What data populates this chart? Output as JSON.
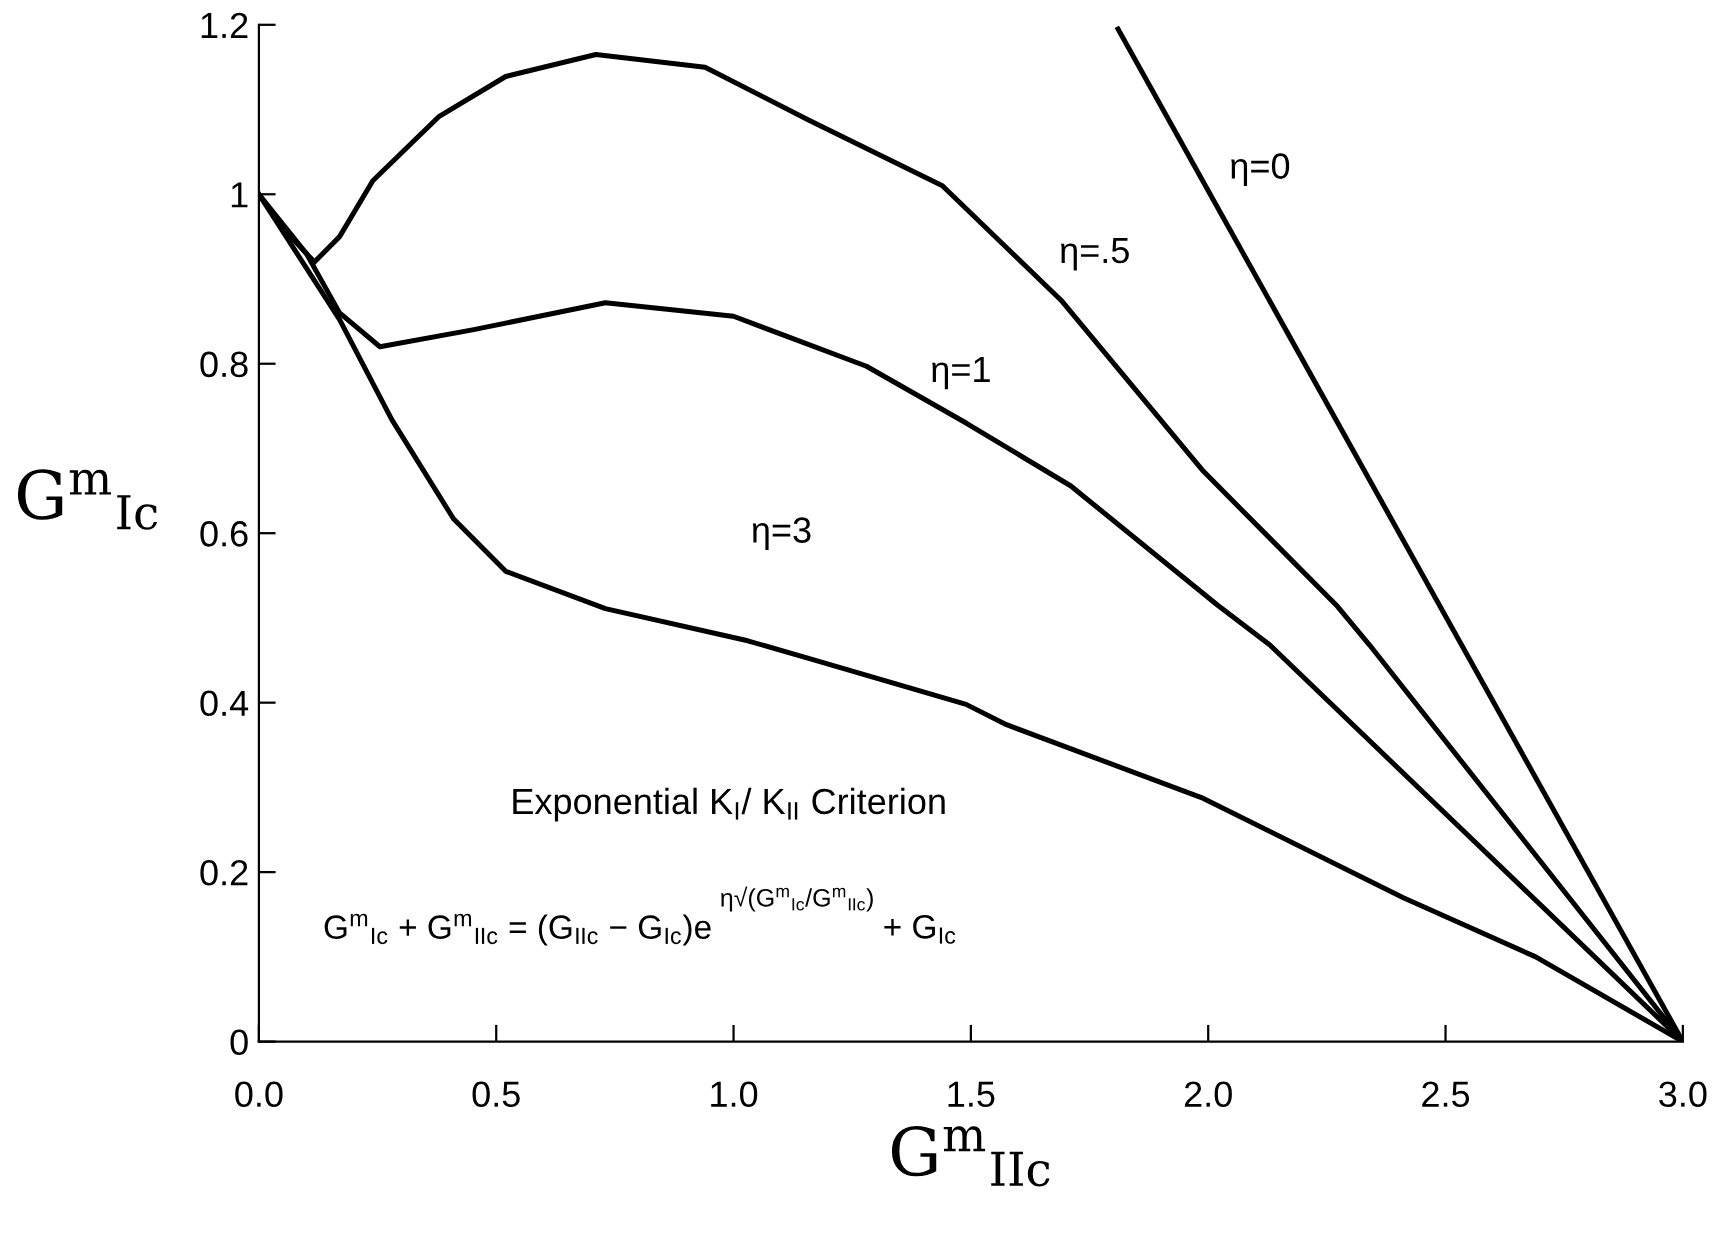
{
  "chart_data": {
    "type": "line",
    "xlabel": "G$^{m}$$_{IIc}$",
    "ylabel": "G$^{m}$$_{Ic}$",
    "series": [
      {
        "color": "#000000",
        "x": [
          1.81,
          3.0
        ],
        "values": [
          1.195,
          0
        ]
      },
      {
        "color": "#000000",
        "x": [
          0,
          0.05,
          0.117,
          0.17,
          0.24,
          0.38,
          0.52,
          0.71,
          0.94,
          1.16,
          1.44,
          1.69,
          1.99,
          2.27,
          2.34,
          3.0
        ],
        "values": [
          1,
          0.96,
          0.92,
          0.95,
          1.016,
          1.092,
          1.139,
          1.165,
          1.15,
          1.087,
          1.01,
          0.875,
          0.673,
          0.515,
          0.468,
          0
        ]
      },
      {
        "color": "#000000",
        "x": [
          0,
          0.1,
          0.17,
          0.255,
          0.45,
          0.73,
          1.0,
          1.28,
          1.49,
          1.71,
          2.02,
          2.13,
          3.0
        ],
        "values": [
          1,
          0.93,
          0.86,
          0.82,
          0.84,
          0.872,
          0.856,
          0.797,
          0.73,
          0.656,
          0.515,
          0.468,
          0
        ]
      },
      {
        "color": "#000000",
        "x": [
          0,
          0.17,
          0.28,
          0.41,
          0.52,
          0.73,
          1.03,
          1.16,
          1.49,
          1.575,
          1.99,
          2.41,
          2.69,
          3.0
        ],
        "values": [
          1,
          0.852,
          0.734,
          0.617,
          0.555,
          0.511,
          0.473,
          0.452,
          0.398,
          0.374,
          0.287,
          0.17,
          0.1,
          0
        ]
      }
    ],
    "annotations": [
      "η=0",
      "η=.5",
      "η=1",
      "η=3",
      "Exponential K$_{I}$/ K$_{II}$ Criterion",
      "G$^{m}$$_{Ic}$ + G$^{m}$$_{IIc}$ = (G$_{IIc}$ − G$_{Ic}$)e",
      "η√(G$^{m}$$_{Ic}$/G$^{m}$$_{IIc}$)",
      "+ G$_{Ic}$"
    ],
    "xlim": [
      0,
      3.0
    ],
    "ylim": [
      0,
      1.2
    ],
    "xticks": [
      {
        "value": 0,
        "label": "0.0"
      },
      0.5,
      {
        "value": 1,
        "label": "1.0"
      },
      1.5,
      {
        "value": 2,
        "label": "2.0"
      },
      2.5,
      {
        "value": 3,
        "label": "3.0"
      }
    ],
    "yticks": [
      0,
      0.2,
      0.4,
      0.6,
      0.8,
      1,
      1.2
    ],
    "grid": false,
    "marker": "none",
    "line_style": "solid"
  }
}
